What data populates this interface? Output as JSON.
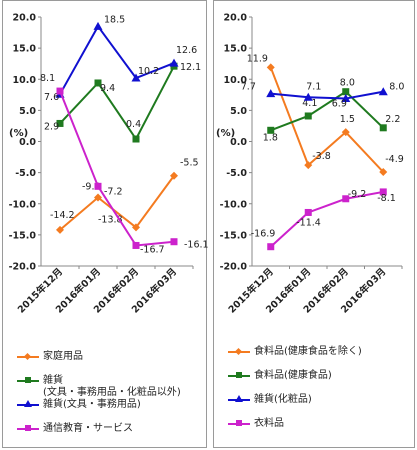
{
  "chart_data": [
    {
      "type": "line",
      "categories": [
        "2015年12月",
        "2016年01月",
        "2016年02月",
        "2016年03月"
      ],
      "ylabel": "(%)",
      "ylim": [
        -20,
        20
      ],
      "ytick_step": 5,
      "yticks": [
        "20.0",
        "15.0",
        "10.0",
        "5.0",
        "0.0",
        "-5.0",
        "-10.0",
        "-15.0",
        "-20.0"
      ],
      "grid": false,
      "legend_position": "bottom",
      "series": [
        {
          "name": "家庭用品",
          "color": "#f47b20",
          "marker": "diamond",
          "values": [
            -14.2,
            -9.0,
            -13.8,
            -5.5
          ],
          "labels": [
            "-14.2",
            "-9.0",
            "-13.8",
            "-5.5"
          ]
        },
        {
          "name_lines": [
            "雑貨",
            "(文具・事務用品・化粧品以外)"
          ],
          "color": "#1f7a1f",
          "marker": "square",
          "values": [
            2.9,
            9.4,
            0.4,
            12.1
          ],
          "labels": [
            "2.9",
            "9.4",
            "0.4",
            "12.1"
          ]
        },
        {
          "name": "雑貨(文具・事務用品)",
          "color": "#1010d0",
          "marker": "triangle",
          "values": [
            7.6,
            18.5,
            10.2,
            12.6
          ],
          "labels": [
            "7.6",
            "18.5",
            "10.2",
            "12.6"
          ]
        },
        {
          "name": "通信教育・サービス",
          "color": "#cc22cc",
          "marker": "square",
          "values": [
            8.1,
            -7.2,
            -16.7,
            -16.1
          ],
          "labels": [
            "8.1",
            "-7.2",
            "-16.7",
            "-16.1"
          ]
        }
      ]
    },
    {
      "type": "line",
      "categories": [
        "2015年12月",
        "2016年01月",
        "2016年02月",
        "2016年03月"
      ],
      "ylabel": "(%)",
      "ylim": [
        -20,
        20
      ],
      "ytick_step": 5,
      "yticks": [
        "20.0",
        "15.0",
        "10.0",
        "5.0",
        "0.0",
        "-5.0",
        "-10.0",
        "-15.0",
        "-20.0"
      ],
      "grid": false,
      "legend_position": "bottom",
      "series": [
        {
          "name": "食料品(健康食品を除く)",
          "color": "#f47b20",
          "marker": "diamond",
          "values": [
            11.9,
            -3.8,
            1.5,
            -4.9
          ],
          "labels": [
            "11.9",
            "-3.8",
            "1.5",
            "-4.9"
          ]
        },
        {
          "name": "食料品(健康食品)",
          "color": "#1f7a1f",
          "marker": "square",
          "values": [
            1.8,
            4.1,
            8.0,
            2.2
          ],
          "labels": [
            "1.8",
            "4.1",
            "8.0",
            "2.2"
          ]
        },
        {
          "name": "雑貨(化粧品)",
          "color": "#1010d0",
          "marker": "triangle",
          "values": [
            7.7,
            7.1,
            6.9,
            8.0
          ],
          "labels": [
            "7.7",
            "7.1",
            "6.9",
            "8.0"
          ]
        },
        {
          "name": "衣料品",
          "color": "#cc22cc",
          "marker": "square",
          "values": [
            -16.9,
            -11.4,
            -9.2,
            -8.1
          ],
          "labels": [
            "-16.9",
            "-11.4",
            "-9.2",
            "-8.1"
          ]
        }
      ]
    }
  ]
}
